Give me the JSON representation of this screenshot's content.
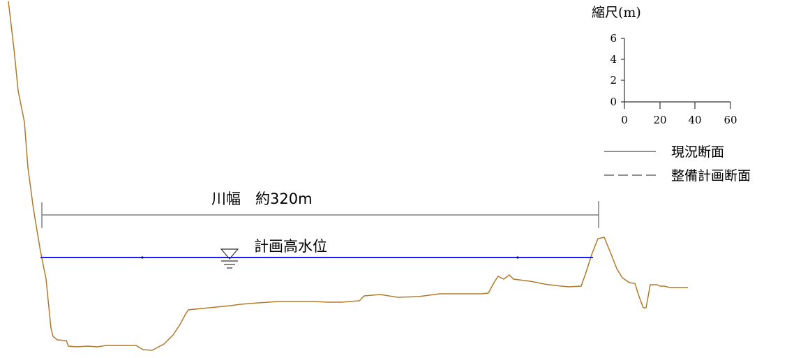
{
  "scale": {
    "title": "縮尺(m)",
    "y_ticks": [
      "6",
      "4",
      "2",
      "0"
    ],
    "x_ticks": [
      "0",
      "20",
      "40",
      "60"
    ]
  },
  "legend": {
    "current_label": "現況断面",
    "planned_label": "整備計画断面"
  },
  "river_width_label": "川幅　約320m",
  "water_level_label": "計画高水位",
  "colors": {
    "ground_profile": "#b07a2a",
    "water_line": "#1a1aff",
    "dimension_line": "#808080",
    "text": "#000000"
  }
}
